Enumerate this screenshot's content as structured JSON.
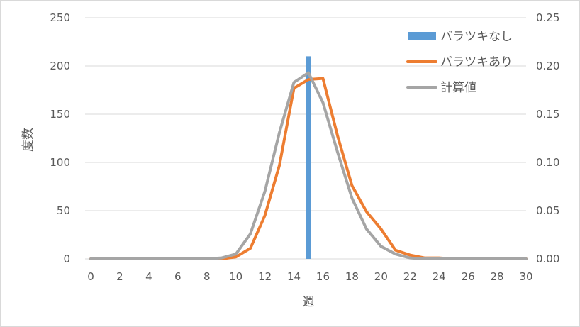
{
  "chart_data": {
    "type": "line",
    "xlabel": "週",
    "ylabel": "度数",
    "xlim": [
      0,
      30
    ],
    "ylim": [
      0,
      250
    ],
    "y2lim": [
      0,
      0.25
    ],
    "x_ticks": [
      "0",
      "2",
      "4",
      "6",
      "8",
      "10",
      "12",
      "14",
      "16",
      "18",
      "20",
      "22",
      "24",
      "26",
      "28",
      "30"
    ],
    "y_ticks": [
      "0",
      "50",
      "100",
      "150",
      "200",
      "250"
    ],
    "y2_ticks": [
      "0.00",
      "0.05",
      "0.10",
      "0.15",
      "0.20",
      "0.25"
    ],
    "grid": true,
    "legend_position": "top-right",
    "series": [
      {
        "name": "バラツキなし",
        "kind": "bar",
        "color": "#5B9BD5",
        "x": [
          15
        ],
        "values": [
          210
        ]
      },
      {
        "name": "バラツキあり",
        "kind": "line",
        "color": "#ED7D31",
        "x": [
          0,
          1,
          2,
          3,
          4,
          5,
          6,
          7,
          8,
          9,
          10,
          11,
          12,
          13,
          14,
          15,
          16,
          17,
          18,
          19,
          20,
          21,
          22,
          23,
          24,
          25,
          26,
          27,
          28,
          29,
          30
        ],
        "values": [
          0,
          0,
          0,
          0,
          0,
          0,
          0,
          0,
          0,
          0,
          2,
          11,
          45,
          97,
          177,
          186,
          187,
          128,
          76,
          49,
          31,
          9,
          4,
          1,
          1,
          0,
          0,
          0,
          0,
          0,
          0
        ]
      },
      {
        "name": "計算値",
        "kind": "line",
        "color": "#A5A5A5",
        "x": [
          0,
          1,
          2,
          3,
          4,
          5,
          6,
          7,
          8,
          9,
          10,
          11,
          12,
          13,
          14,
          15,
          16,
          17,
          18,
          19,
          20,
          21,
          22,
          23,
          24,
          25,
          26,
          27,
          28,
          29,
          30
        ],
        "values": [
          0,
          0,
          0,
          0,
          0,
          0,
          0,
          0,
          0,
          1,
          5,
          26,
          70,
          131,
          183,
          193,
          162,
          111,
          63,
          31,
          13,
          5,
          1,
          0,
          0,
          0,
          0,
          0,
          0,
          0,
          0
        ]
      }
    ]
  }
}
